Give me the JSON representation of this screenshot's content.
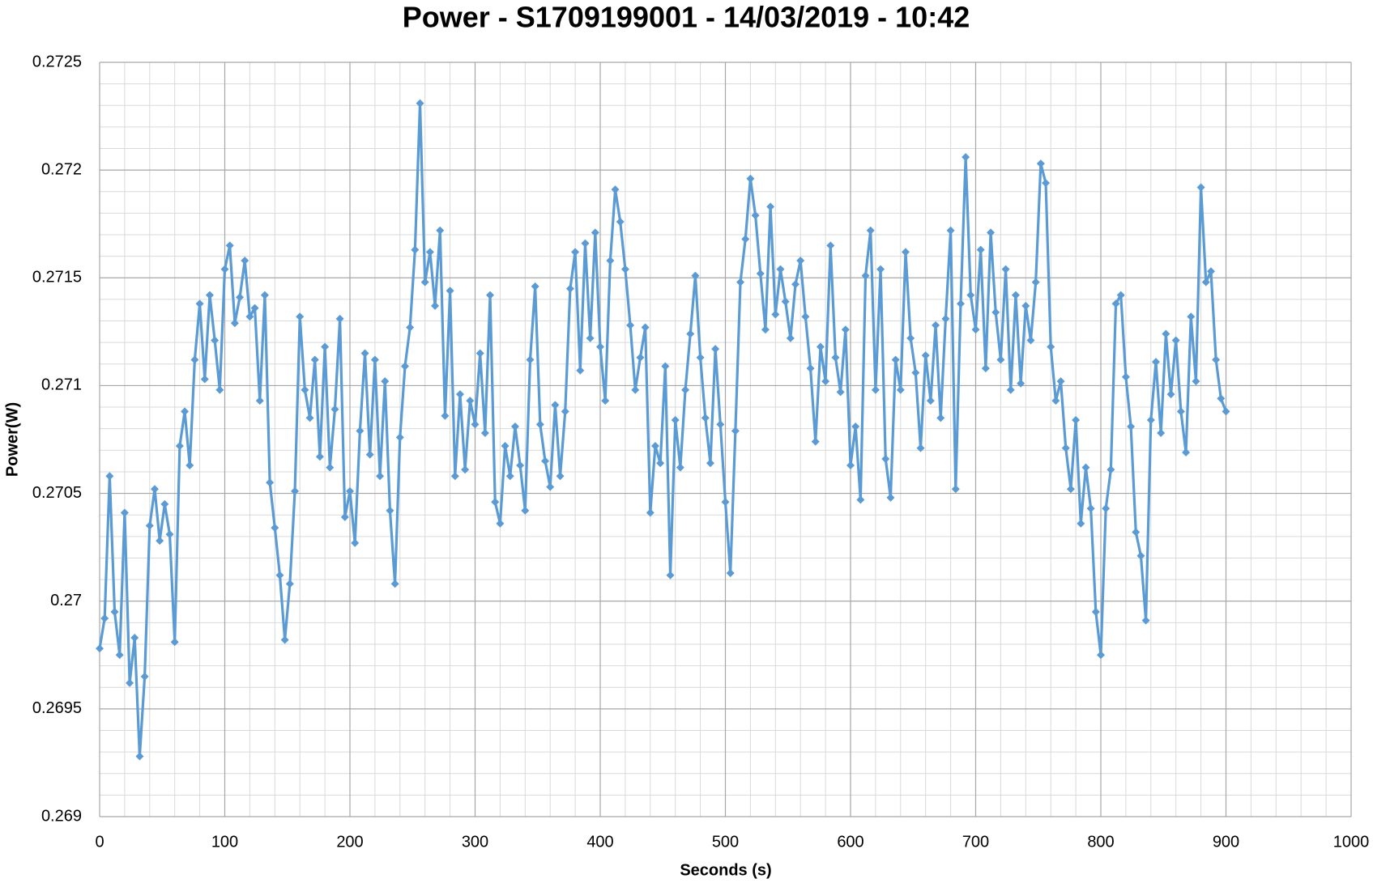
{
  "chart_data": {
    "type": "line",
    "title": "Power - S1709199001 - 14/03/2019 - 10:42",
    "x_label": "Seconds (s)",
    "y_label": "Power(W)",
    "color": "#5b9bd5",
    "grid": true,
    "minor_grid": 5,
    "xlim": [
      0,
      1000
    ],
    "xticks": [
      0,
      100,
      200,
      300,
      400,
      500,
      600,
      700,
      800,
      900,
      1000
    ],
    "ylim": [
      0.269,
      0.2725
    ],
    "yticks": [
      0.269,
      0.2695,
      0.27,
      0.2705,
      0.271,
      0.2715,
      0.272,
      0.2725
    ],
    "x": [
      0,
      4,
      8,
      12,
      16,
      20,
      24,
      28,
      32,
      36,
      40,
      44,
      48,
      52,
      56,
      60,
      64,
      68,
      72,
      76,
      80,
      84,
      88,
      92,
      96,
      100,
      104,
      108,
      112,
      116,
      120,
      124,
      128,
      132,
      136,
      140,
      144,
      148,
      152,
      156,
      160,
      164,
      168,
      172,
      176,
      180,
      184,
      188,
      192,
      196,
      200,
      204,
      208,
      212,
      216,
      220,
      224,
      228,
      232,
      236,
      240,
      244,
      248,
      252,
      256,
      260,
      264,
      268,
      272,
      276,
      280,
      284,
      288,
      292,
      296,
      300,
      304,
      308,
      312,
      316,
      320,
      324,
      328,
      332,
      336,
      340,
      344,
      348,
      352,
      356,
      360,
      364,
      368,
      372,
      376,
      380,
      384,
      388,
      392,
      396,
      400,
      404,
      408,
      412,
      416,
      420,
      424,
      428,
      432,
      436,
      440,
      444,
      448,
      452,
      456,
      460,
      464,
      468,
      472,
      476,
      480,
      484,
      488,
      492,
      496,
      500,
      504,
      508,
      512,
      516,
      520,
      524,
      528,
      532,
      536,
      540,
      544,
      548,
      552,
      556,
      560,
      564,
      568,
      572,
      576,
      580,
      584,
      588,
      592,
      596,
      600,
      604,
      608,
      612,
      616,
      620,
      624,
      628,
      632,
      636,
      640,
      644,
      648,
      652,
      656,
      660,
      664,
      668,
      672,
      676,
      680,
      684,
      688,
      692,
      696,
      700,
      704,
      708,
      712,
      716,
      720,
      724,
      728,
      732,
      736,
      740,
      744,
      748,
      752,
      756,
      760,
      764,
      768,
      772,
      776,
      780,
      784,
      788,
      792,
      796,
      800,
      804,
      808,
      812,
      816,
      820,
      824,
      828,
      832,
      836,
      840,
      844,
      848,
      852,
      856,
      860,
      864,
      868,
      872,
      876,
      880,
      884,
      888,
      892,
      896,
      900
    ],
    "values": [
      0.26978,
      0.26992,
      0.27058,
      0.26995,
      0.26975,
      0.27041,
      0.26962,
      0.26983,
      0.26928,
      0.26965,
      0.27035,
      0.27052,
      0.27028,
      0.27045,
      0.27031,
      0.26981,
      0.27072,
      0.27088,
      0.27063,
      0.27112,
      0.27138,
      0.27103,
      0.27142,
      0.27121,
      0.27098,
      0.27154,
      0.27165,
      0.27129,
      0.27141,
      0.27158,
      0.27132,
      0.27136,
      0.27093,
      0.27142,
      0.27055,
      0.27034,
      0.27012,
      0.26982,
      0.27008,
      0.27051,
      0.27132,
      0.27098,
      0.27085,
      0.27112,
      0.27067,
      0.27118,
      0.27062,
      0.27089,
      0.27131,
      0.27039,
      0.27051,
      0.27027,
      0.27079,
      0.27115,
      0.27068,
      0.27112,
      0.27058,
      0.27102,
      0.27042,
      0.27008,
      0.27076,
      0.27109,
      0.27127,
      0.27163,
      0.27231,
      0.27148,
      0.27162,
      0.27137,
      0.27172,
      0.27086,
      0.27144,
      0.27058,
      0.27096,
      0.27061,
      0.27093,
      0.27082,
      0.27115,
      0.27078,
      0.27142,
      0.27046,
      0.27036,
      0.27072,
      0.27058,
      0.27081,
      0.27063,
      0.27042,
      0.27112,
      0.27146,
      0.27082,
      0.27065,
      0.27053,
      0.27091,
      0.27058,
      0.27088,
      0.27145,
      0.27162,
      0.27107,
      0.27166,
      0.27122,
      0.27171,
      0.27118,
      0.27093,
      0.27158,
      0.27191,
      0.27176,
      0.27154,
      0.27128,
      0.27098,
      0.27113,
      0.27127,
      0.27041,
      0.27072,
      0.27064,
      0.27109,
      0.27012,
      0.27084,
      0.27062,
      0.27098,
      0.27124,
      0.27151,
      0.27113,
      0.27085,
      0.27064,
      0.27117,
      0.27082,
      0.27046,
      0.27013,
      0.27079,
      0.27148,
      0.27168,
      0.27196,
      0.27179,
      0.27152,
      0.27126,
      0.27183,
      0.27133,
      0.27154,
      0.27139,
      0.27122,
      0.27147,
      0.27158,
      0.27132,
      0.27108,
      0.27074,
      0.27118,
      0.27102,
      0.27165,
      0.27113,
      0.27097,
      0.27126,
      0.27063,
      0.27081,
      0.27047,
      0.27151,
      0.27172,
      0.27098,
      0.27154,
      0.27066,
      0.27048,
      0.27112,
      0.27098,
      0.27162,
      0.27122,
      0.27106,
      0.27071,
      0.27114,
      0.27093,
      0.27128,
      0.27085,
      0.27131,
      0.27172,
      0.27052,
      0.27138,
      0.27206,
      0.27142,
      0.27126,
      0.27163,
      0.27108,
      0.27171,
      0.27134,
      0.27112,
      0.27154,
      0.27098,
      0.27142,
      0.27101,
      0.27137,
      0.27121,
      0.27148,
      0.27203,
      0.27194,
      0.27118,
      0.27093,
      0.27102,
      0.27071,
      0.27052,
      0.27084,
      0.27036,
      0.27062,
      0.27043,
      0.26995,
      0.26975,
      0.27043,
      0.27061,
      0.27138,
      0.27142,
      0.27104,
      0.27081,
      0.27032,
      0.27021,
      0.26991,
      0.27084,
      0.27111,
      0.27078,
      0.27124,
      0.27096,
      0.27121,
      0.27088,
      0.27069,
      0.27132,
      0.27102,
      0.27192,
      0.27148,
      0.27153,
      0.27112,
      0.27094,
      0.27088
    ]
  }
}
